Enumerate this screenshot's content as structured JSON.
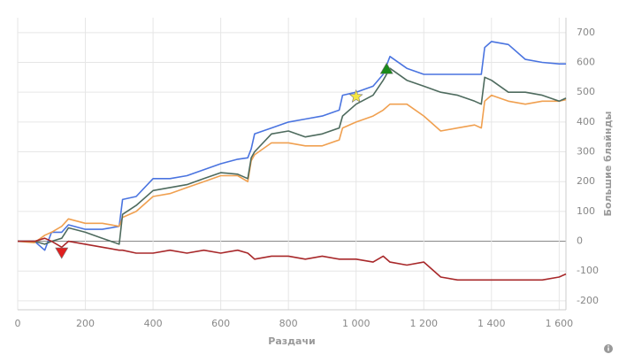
{
  "chart_data": {
    "type": "line",
    "x_label": "Раздачи",
    "y_label": "Большие блайнды",
    "x": [
      0,
      50,
      80,
      100,
      130,
      150,
      200,
      250,
      300,
      310,
      350,
      400,
      450,
      500,
      550,
      600,
      650,
      680,
      690,
      700,
      750,
      800,
      850,
      900,
      950,
      960,
      1000,
      1050,
      1080,
      1100,
      1150,
      1200,
      1250,
      1300,
      1350,
      1370,
      1380,
      1400,
      1450,
      1500,
      1550,
      1600,
      1620
    ],
    "series": [
      {
        "color": "#4a74e0",
        "values": [
          0,
          0,
          -30,
          30,
          30,
          55,
          40,
          40,
          50,
          140,
          150,
          210,
          210,
          220,
          240,
          260,
          275,
          280,
          310,
          360,
          380,
          400,
          410,
          420,
          440,
          490,
          500,
          520,
          560,
          620,
          580,
          560,
          560,
          560,
          560,
          560,
          650,
          670,
          660,
          610,
          600,
          595,
          595
        ]
      },
      {
        "color": "#f0a050",
        "values": [
          0,
          -5,
          20,
          30,
          50,
          75,
          60,
          60,
          50,
          80,
          100,
          150,
          160,
          180,
          200,
          220,
          220,
          200,
          270,
          290,
          330,
          330,
          320,
          320,
          340,
          380,
          400,
          420,
          440,
          460,
          460,
          420,
          370,
          380,
          390,
          380,
          470,
          490,
          470,
          460,
          470,
          470,
          475
        ]
      },
      {
        "color": "#4e6b5e",
        "values": [
          0,
          0,
          -10,
          0,
          10,
          45,
          30,
          10,
          -10,
          90,
          120,
          170,
          180,
          190,
          210,
          230,
          225,
          210,
          280,
          300,
          360,
          370,
          350,
          360,
          380,
          420,
          460,
          490,
          540,
          580,
          540,
          520,
          500,
          490,
          470,
          460,
          550,
          540,
          500,
          500,
          490,
          470,
          480
        ]
      },
      {
        "color": "#a8282a",
        "values": [
          0,
          0,
          10,
          0,
          -20,
          0,
          -10,
          -20,
          -30,
          -30,
          -40,
          -40,
          -30,
          -40,
          -30,
          -40,
          -30,
          -40,
          -50,
          -60,
          -50,
          -50,
          -60,
          -50,
          -60,
          -60,
          -60,
          -70,
          -50,
          -70,
          -80,
          -70,
          -120,
          -130,
          -130,
          -130,
          -130,
          -130,
          -130,
          -130,
          -130,
          -120,
          -110
        ]
      }
    ],
    "markers": [
      {
        "shape": "triangle-down",
        "color": "#e02020",
        "x": 130,
        "y": -40
      },
      {
        "shape": "star",
        "color": "#f5e642",
        "x": 1000,
        "y": 485
      },
      {
        "shape": "triangle-up",
        "color": "#1a8a1a",
        "x": 1090,
        "y": 580
      }
    ],
    "xlim": [
      0,
      1620
    ],
    "ylim": [
      -230,
      750
    ],
    "xticks": [
      0,
      200,
      400,
      600,
      800,
      {
        "value": 1000,
        "label": "1 000"
      },
      {
        "value": 1200,
        "label": "1 200"
      },
      {
        "value": 1400,
        "label": "1 400"
      },
      {
        "value": 1600,
        "label": "1 600"
      }
    ],
    "yticks": [
      -200,
      -100,
      0,
      100,
      200,
      300,
      400,
      500,
      600,
      700
    ],
    "grid": true
  }
}
